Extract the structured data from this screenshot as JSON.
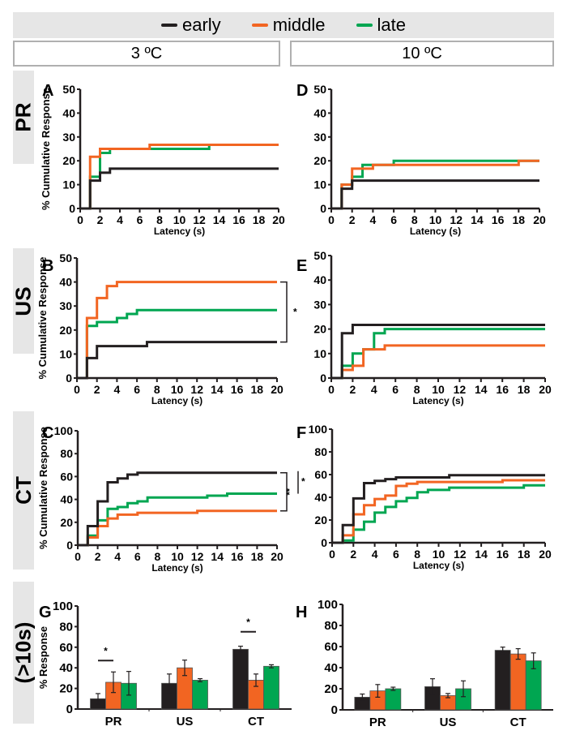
{
  "legend": {
    "items": [
      {
        "label": "early",
        "color": "#231f20"
      },
      {
        "label": "middle",
        "color": "#f26522"
      },
      {
        "label": "late",
        "color": "#00a651"
      }
    ]
  },
  "conditions": [
    "3 ºC",
    "10 ºC"
  ],
  "row_labels": [
    "PR",
    "US",
    "CT",
    "(>10s)"
  ],
  "chart_data": [
    {
      "panel": "A",
      "type": "line",
      "condition": "3 ºC",
      "stimulus": "PR",
      "xlabel": "Latency (s)",
      "ylabel": "% Cumulative Response",
      "xlim": [
        0,
        20
      ],
      "ylim": [
        0,
        50
      ],
      "xticks": [
        0,
        2,
        4,
        6,
        8,
        10,
        12,
        14,
        16,
        18,
        20
      ],
      "yticks": [
        0,
        10,
        20,
        30,
        40,
        50
      ],
      "series": [
        {
          "name": "early",
          "steps": [
            [
              0,
              0
            ],
            [
              1,
              11.7
            ],
            [
              2,
              15
            ],
            [
              3,
              16.7
            ],
            [
              20,
              16.7
            ]
          ]
        },
        {
          "name": "middle",
          "steps": [
            [
              0,
              0
            ],
            [
              1,
              21.7
            ],
            [
              2,
              25
            ],
            [
              7,
              26.7
            ],
            [
              20,
              26.7
            ]
          ]
        },
        {
          "name": "late",
          "steps": [
            [
              0,
              0
            ],
            [
              1,
              13.3
            ],
            [
              2,
              23.3
            ],
            [
              3,
              25
            ],
            [
              13,
              26.7
            ],
            [
              20,
              26.7
            ]
          ]
        }
      ],
      "annotations": []
    },
    {
      "panel": "B",
      "type": "line",
      "condition": "3 ºC",
      "stimulus": "US",
      "xlabel": "Latency (s)",
      "ylabel": "% Cumulative Response",
      "xlim": [
        0,
        20
      ],
      "ylim": [
        0,
        50
      ],
      "xticks": [
        0,
        2,
        4,
        6,
        8,
        10,
        12,
        14,
        16,
        18,
        20
      ],
      "yticks": [
        0,
        10,
        20,
        30,
        40,
        50
      ],
      "series": [
        {
          "name": "early",
          "steps": [
            [
              0,
              0
            ],
            [
              1,
              8.3
            ],
            [
              2,
              13.3
            ],
            [
              7,
              15
            ],
            [
              20,
              15
            ]
          ]
        },
        {
          "name": "middle",
          "steps": [
            [
              0,
              0
            ],
            [
              1,
              25
            ],
            [
              2,
              33.3
            ],
            [
              3,
              38.3
            ],
            [
              4,
              40
            ],
            [
              20,
              40
            ]
          ]
        },
        {
          "name": "late",
          "steps": [
            [
              0,
              0
            ],
            [
              1,
              21.7
            ],
            [
              2,
              23.3
            ],
            [
              4,
              25
            ],
            [
              5,
              26.7
            ],
            [
              6,
              28.3
            ],
            [
              20,
              28.3
            ]
          ]
        }
      ],
      "annotations": [
        {
          "type": "bracket",
          "from": "middle",
          "to": "early",
          "label": "*"
        }
      ]
    },
    {
      "panel": "C",
      "type": "line",
      "condition": "3 ºC",
      "stimulus": "CT",
      "xlabel": "Latency (s)",
      "ylabel": "% Cumulative Response",
      "xlim": [
        0,
        20
      ],
      "ylim": [
        0,
        100
      ],
      "xticks": [
        0,
        2,
        4,
        6,
        8,
        10,
        12,
        14,
        16,
        18,
        20
      ],
      "yticks": [
        0,
        20,
        40,
        60,
        80,
        100
      ],
      "series": [
        {
          "name": "early",
          "steps": [
            [
              0,
              0
            ],
            [
              1,
              16.7
            ],
            [
              2,
              38.3
            ],
            [
              3,
              55
            ],
            [
              4,
              58.3
            ],
            [
              5,
              61.7
            ],
            [
              6,
              63.3
            ],
            [
              20,
              63.3
            ]
          ]
        },
        {
          "name": "middle",
          "steps": [
            [
              0,
              0
            ],
            [
              1,
              6.7
            ],
            [
              2,
              16.7
            ],
            [
              3,
              23.3
            ],
            [
              4,
              26.7
            ],
            [
              6,
              28.3
            ],
            [
              12,
              30
            ],
            [
              20,
              30
            ]
          ]
        },
        {
          "name": "late",
          "steps": [
            [
              0,
              0
            ],
            [
              1,
              8.3
            ],
            [
              2,
              21.7
            ],
            [
              3,
              31.7
            ],
            [
              4,
              33.3
            ],
            [
              5,
              36.7
            ],
            [
              6,
              38.3
            ],
            [
              7,
              41.7
            ],
            [
              13,
              43.3
            ],
            [
              15,
              45
            ],
            [
              20,
              45
            ]
          ]
        }
      ],
      "annotations": [
        {
          "type": "bracket",
          "from": "early",
          "to": "middle",
          "label": "**"
        },
        {
          "type": "bar",
          "from": "early",
          "to": "late",
          "label": "*"
        }
      ]
    },
    {
      "panel": "D",
      "type": "line",
      "condition": "10 ºC",
      "stimulus": "PR",
      "xlabel": "Latency (s)",
      "ylabel": "",
      "xlim": [
        0,
        20
      ],
      "ylim": [
        0,
        50
      ],
      "xticks": [
        0,
        2,
        4,
        6,
        8,
        10,
        12,
        14,
        16,
        18,
        20
      ],
      "yticks": [
        0,
        10,
        20,
        30,
        40,
        50
      ],
      "series": [
        {
          "name": "early",
          "steps": [
            [
              0,
              0
            ],
            [
              1,
              8.3
            ],
            [
              2,
              11.7
            ],
            [
              20,
              11.7
            ]
          ]
        },
        {
          "name": "middle",
          "steps": [
            [
              0,
              0
            ],
            [
              1,
              10
            ],
            [
              2,
              16.7
            ],
            [
              4,
              18.3
            ],
            [
              18,
              20
            ],
            [
              20,
              20
            ]
          ]
        },
        {
          "name": "late",
          "steps": [
            [
              0,
              0
            ],
            [
              1,
              10
            ],
            [
              2,
              13.3
            ],
            [
              3,
              18.3
            ],
            [
              6,
              20
            ],
            [
              18,
              20
            ],
            [
              20,
              20
            ]
          ]
        }
      ],
      "annotations": []
    },
    {
      "panel": "E",
      "type": "line",
      "condition": "10 ºC",
      "stimulus": "US",
      "xlabel": "Latency (s)",
      "ylabel": "",
      "xlim": [
        0,
        20
      ],
      "ylim": [
        0,
        50
      ],
      "xticks": [
        0,
        2,
        4,
        6,
        8,
        10,
        12,
        14,
        16,
        18,
        20
      ],
      "yticks": [
        0,
        10,
        20,
        30,
        40,
        50
      ],
      "series": [
        {
          "name": "early",
          "steps": [
            [
              0,
              0
            ],
            [
              1,
              18.3
            ],
            [
              2,
              21.7
            ],
            [
              20,
              21.7
            ]
          ]
        },
        {
          "name": "middle",
          "steps": [
            [
              0,
              0
            ],
            [
              1,
              3.3
            ],
            [
              2,
              5
            ],
            [
              3,
              11.7
            ],
            [
              5,
              13.3
            ],
            [
              20,
              13.3
            ]
          ]
        },
        {
          "name": "late",
          "steps": [
            [
              0,
              0
            ],
            [
              1,
              5
            ],
            [
              2,
              10
            ],
            [
              3,
              11.7
            ],
            [
              4,
              18.3
            ],
            [
              5,
              20
            ],
            [
              20,
              20
            ]
          ]
        }
      ],
      "annotations": []
    },
    {
      "panel": "F",
      "type": "line",
      "condition": "10 ºC",
      "stimulus": "CT",
      "xlabel": "Latency (s)",
      "ylabel": "",
      "xlim": [
        0,
        20
      ],
      "ylim": [
        0,
        100
      ],
      "xticks": [
        0,
        2,
        4,
        6,
        8,
        10,
        12,
        14,
        16,
        18,
        20
      ],
      "yticks": [
        0,
        20,
        40,
        60,
        80,
        100
      ],
      "series": [
        {
          "name": "early",
          "steps": [
            [
              0,
              0
            ],
            [
              1,
              15.5
            ],
            [
              2,
              39
            ],
            [
              3,
              52.5
            ],
            [
              4,
              54.5
            ],
            [
              5,
              56
            ],
            [
              6,
              57.5
            ],
            [
              11,
              59.5
            ],
            [
              20,
              59.5
            ]
          ]
        },
        {
          "name": "middle",
          "steps": [
            [
              0,
              0
            ],
            [
              1,
              6.5
            ],
            [
              2,
              25
            ],
            [
              3,
              33
            ],
            [
              4,
              38.5
            ],
            [
              5,
              41.5
            ],
            [
              6,
              50
            ],
            [
              7,
              52
            ],
            [
              8,
              53.5
            ],
            [
              16,
              55
            ],
            [
              20,
              55
            ]
          ]
        },
        {
          "name": "late",
          "steps": [
            [
              0,
              0
            ],
            [
              1,
              2
            ],
            [
              2,
              11.5
            ],
            [
              3,
              18.5
            ],
            [
              4,
              26.5
            ],
            [
              5,
              31.5
            ],
            [
              6,
              36.5
            ],
            [
              7,
              39.5
            ],
            [
              8,
              44.5
            ],
            [
              9,
              46.5
            ],
            [
              11,
              48.5
            ],
            [
              18,
              50.5
            ],
            [
              20,
              50.5
            ]
          ]
        }
      ],
      "annotations": []
    },
    {
      "panel": "G",
      "type": "bar",
      "condition": "3 ºC",
      "title_row": "(>10s)",
      "xlabel": "",
      "ylabel": "% Response",
      "ylim": [
        0,
        100
      ],
      "yticks": [
        0,
        20,
        40,
        60,
        80,
        100
      ],
      "categories": [
        "PR",
        "US",
        "CT"
      ],
      "series": [
        {
          "name": "early",
          "values": [
            10,
            25,
            58
          ],
          "errors": [
            5,
            9,
            3
          ]
        },
        {
          "name": "middle",
          "values": [
            26,
            40,
            28
          ],
          "errors": [
            10,
            7.5,
            6
          ]
        },
        {
          "name": "late",
          "values": [
            25,
            28,
            41.5
          ],
          "errors": [
            11.5,
            1.5,
            1.5
          ]
        }
      ],
      "annotations": [
        {
          "category": "PR",
          "between": [
            "early",
            "middle"
          ],
          "label": "*",
          "level": 47
        },
        {
          "category": "CT",
          "between": [
            "early",
            "middle"
          ],
          "label": "*",
          "level": 75
        }
      ]
    },
    {
      "panel": "H",
      "type": "bar",
      "condition": "10 ºC",
      "xlabel": "",
      "ylabel": "",
      "ylim": [
        0,
        100
      ],
      "yticks": [
        0,
        20,
        40,
        60,
        80,
        100
      ],
      "categories": [
        "PR",
        "US",
        "CT"
      ],
      "series": [
        {
          "name": "early",
          "values": [
            12,
            22,
            56.5
          ],
          "errors": [
            3,
            7.5,
            3
          ]
        },
        {
          "name": "middle",
          "values": [
            18,
            13.5,
            53
          ],
          "errors": [
            6,
            2,
            5
          ]
        },
        {
          "name": "late",
          "values": [
            20,
            20,
            46.5
          ],
          "errors": [
            1.5,
            7.5,
            7.5
          ]
        }
      ],
      "annotations": []
    }
  ]
}
